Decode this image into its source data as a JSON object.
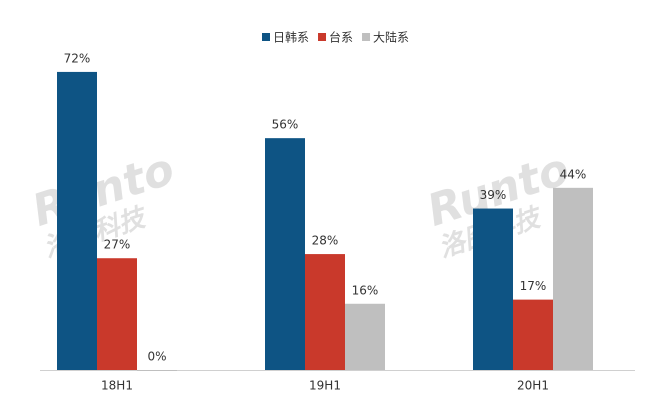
{
  "chart_data": {
    "type": "bar",
    "categories": [
      "18H1",
      "19H1",
      "20H1"
    ],
    "series": [
      {
        "name": "日韩系",
        "color": "#0e5484",
        "values": [
          72,
          56,
          39
        ],
        "value_labels": [
          "72%",
          "56%",
          "39%"
        ]
      },
      {
        "name": "台系",
        "color": "#c9392b",
        "values": [
          27,
          28,
          17
        ],
        "value_labels": [
          "27%",
          "28%",
          "17%"
        ]
      },
      {
        "name": "大陆系",
        "color": "#bfbfbf",
        "values": [
          0,
          16,
          44
        ],
        "value_labels": [
          "0%",
          "16%",
          "44%"
        ]
      }
    ],
    "legend": "top",
    "watermark": {
      "brand": "Runto",
      "name": "洛图科技"
    }
  }
}
